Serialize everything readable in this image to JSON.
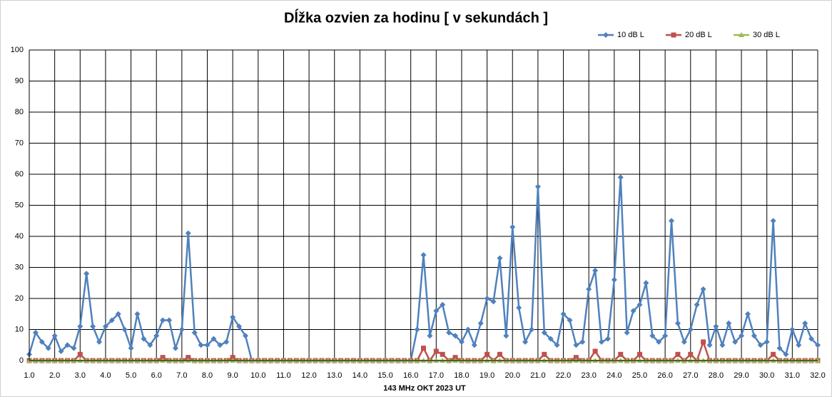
{
  "chart_data": {
    "type": "line",
    "title": "Dĺžka ozvien za hodinu [ v sekundách ]",
    "x_label": "143 MHz OKT  2023  UT",
    "x": [
      1,
      1.25,
      1.5,
      1.75,
      2,
      2.25,
      2.5,
      2.75,
      3,
      3.25,
      3.5,
      3.75,
      4,
      4.25,
      4.5,
      4.75,
      5,
      5.25,
      5.5,
      5.75,
      6,
      6.25,
      6.5,
      6.75,
      7,
      7.25,
      7.5,
      7.75,
      8,
      8.25,
      8.5,
      8.75,
      9,
      9.25,
      9.5,
      9.75,
      10,
      10.25,
      10.5,
      10.75,
      11,
      11.25,
      11.5,
      11.75,
      12,
      12.25,
      12.5,
      12.75,
      13,
      13.25,
      13.5,
      13.75,
      14,
      14.25,
      14.5,
      14.75,
      15,
      15.25,
      15.5,
      15.75,
      16,
      16.25,
      16.5,
      16.75,
      17,
      17.25,
      17.5,
      17.75,
      18,
      18.25,
      18.5,
      18.75,
      19,
      19.25,
      19.5,
      19.75,
      20,
      20.25,
      20.5,
      20.75,
      21,
      21.25,
      21.5,
      21.75,
      22,
      22.25,
      22.5,
      22.75,
      23,
      23.25,
      23.5,
      23.75,
      24,
      24.25,
      24.5,
      24.75,
      25,
      25.25,
      25.5,
      25.75,
      26,
      26.25,
      26.5,
      26.75,
      27,
      27.25,
      27.5,
      27.75,
      28,
      28.25,
      28.5,
      28.75,
      29,
      29.25,
      29.5,
      29.75,
      30,
      30.25,
      30.5,
      30.75,
      31,
      31.25,
      31.5,
      31.75,
      32
    ],
    "series": [
      {
        "name": "10 dB L",
        "color": "#4f81bd",
        "marker": "diamond",
        "values": [
          2,
          9,
          6,
          4,
          8,
          3,
          5,
          4,
          11,
          28,
          11,
          6,
          11,
          13,
          15,
          10,
          4,
          15,
          7,
          5,
          8,
          13,
          13,
          4,
          10,
          41,
          9,
          5,
          5,
          7,
          5,
          6,
          14,
          11,
          8,
          0,
          0,
          0,
          0,
          0,
          0,
          0,
          0,
          0,
          0,
          0,
          0,
          0,
          0,
          0,
          0,
          0,
          0,
          0,
          0,
          0,
          0,
          0,
          0,
          0,
          0,
          10,
          34,
          8,
          16,
          18,
          9,
          8,
          6,
          10,
          5,
          12,
          20,
          19,
          33,
          8,
          43,
          17,
          6,
          10,
          56,
          9,
          7,
          5,
          15,
          13,
          5,
          6,
          23,
          29,
          6,
          7,
          26,
          59,
          9,
          16,
          18,
          25,
          8,
          6,
          8,
          45,
          12,
          6,
          10,
          18,
          23,
          5,
          11,
          5,
          12,
          6,
          8,
          15,
          8,
          5,
          6,
          45,
          4,
          2,
          10,
          5,
          12,
          7,
          5
        ]
      },
      {
        "name": "20 dB L",
        "color": "#c0504d",
        "marker": "square",
        "values": [
          0,
          0,
          0,
          0,
          0,
          0,
          0,
          0,
          2,
          0,
          0,
          0,
          0,
          0,
          0,
          0,
          0,
          0,
          0,
          0,
          0,
          1,
          0,
          0,
          0,
          1,
          0,
          0,
          0,
          0,
          0,
          0,
          1,
          0,
          0,
          0,
          0,
          0,
          0,
          0,
          0,
          0,
          0,
          0,
          0,
          0,
          0,
          0,
          0,
          0,
          0,
          0,
          0,
          0,
          0,
          0,
          0,
          0,
          0,
          0,
          0,
          0,
          4,
          0,
          3,
          2,
          0,
          1,
          0,
          0,
          0,
          0,
          2,
          0,
          2,
          0,
          0,
          0,
          0,
          0,
          0,
          2,
          0,
          0,
          0,
          0,
          1,
          0,
          0,
          3,
          0,
          0,
          0,
          2,
          0,
          0,
          2,
          0,
          0,
          0,
          0,
          0,
          2,
          0,
          2,
          0,
          6,
          0,
          0,
          0,
          0,
          0,
          0,
          0,
          0,
          0,
          0,
          2,
          0,
          0,
          0,
          0,
          0,
          0,
          0
        ]
      },
      {
        "name": "30 dB L",
        "color": "#9bbb59",
        "marker": "triangle",
        "values": [
          0,
          0,
          0,
          0,
          0,
          0,
          0,
          0,
          0,
          0,
          0,
          0,
          0,
          0,
          0,
          0,
          0,
          0,
          0,
          0,
          0,
          0,
          0,
          0,
          0,
          0,
          0,
          0,
          0,
          0,
          0,
          0,
          0,
          0,
          0,
          0,
          0,
          0,
          0,
          0,
          0,
          0,
          0,
          0,
          0,
          0,
          0,
          0,
          0,
          0,
          0,
          0,
          0,
          0,
          0,
          0,
          0,
          0,
          0,
          0,
          0,
          0,
          0,
          0,
          0,
          0,
          0,
          0,
          0,
          0,
          0,
          0,
          0,
          0,
          0,
          0,
          0,
          0,
          0,
          0,
          0,
          0,
          0,
          0,
          0,
          0,
          0,
          0,
          0,
          0,
          0,
          0,
          0,
          0,
          0,
          0,
          0,
          0,
          0,
          0,
          0,
          0,
          0,
          0,
          0,
          0,
          0,
          0,
          0,
          0,
          0,
          0,
          0,
          0,
          0,
          0,
          0,
          0,
          0,
          0,
          0,
          0,
          0,
          0,
          0
        ]
      }
    ],
    "xlim": [
      1,
      32
    ],
    "xticks": [
      {
        "value": 1,
        "label": "1.0"
      },
      {
        "value": 2,
        "label": "2.0"
      },
      {
        "value": 3,
        "label": "3.0"
      },
      {
        "value": 4,
        "label": "4.0"
      },
      {
        "value": 5,
        "label": "5.0"
      },
      {
        "value": 6,
        "label": "6.0"
      },
      {
        "value": 7,
        "label": "7.0"
      },
      {
        "value": 8,
        "label": "8.0"
      },
      {
        "value": 9,
        "label": "9.0"
      },
      {
        "value": 10,
        "label": "10.0"
      },
      {
        "value": 11,
        "label": "11.0"
      },
      {
        "value": 12,
        "label": "12.0"
      },
      {
        "value": 13,
        "label": "13.0"
      },
      {
        "value": 14,
        "label": "14.0"
      },
      {
        "value": 15,
        "label": "15.0"
      },
      {
        "value": 16,
        "label": "16.0"
      },
      {
        "value": 17,
        "label": "17.0"
      },
      {
        "value": 18,
        "label": "18.0"
      },
      {
        "value": 19,
        "label": "19.0"
      },
      {
        "value": 20,
        "label": "20.0"
      },
      {
        "value": 21,
        "label": "21.0"
      },
      {
        "value": 22,
        "label": "22.0"
      },
      {
        "value": 23,
        "label": "23.0"
      },
      {
        "value": 24,
        "label": "24.0"
      },
      {
        "value": 25,
        "label": "25.0"
      },
      {
        "value": 26,
        "label": "26.0"
      },
      {
        "value": 27,
        "label": "27.0"
      },
      {
        "value": 28,
        "label": "28.0"
      },
      {
        "value": 29,
        "label": "29.0"
      },
      {
        "value": 30,
        "label": "30.0"
      },
      {
        "value": 31,
        "label": "31.0"
      },
      {
        "value": 32,
        "label": "32.0"
      }
    ],
    "ylim": [
      0,
      100
    ],
    "yticks": [
      0,
      10,
      20,
      30,
      40,
      50,
      60,
      70,
      80,
      90,
      100
    ],
    "grid": true,
    "legend": "top-right",
    "title_color": "#f59d1b"
  }
}
